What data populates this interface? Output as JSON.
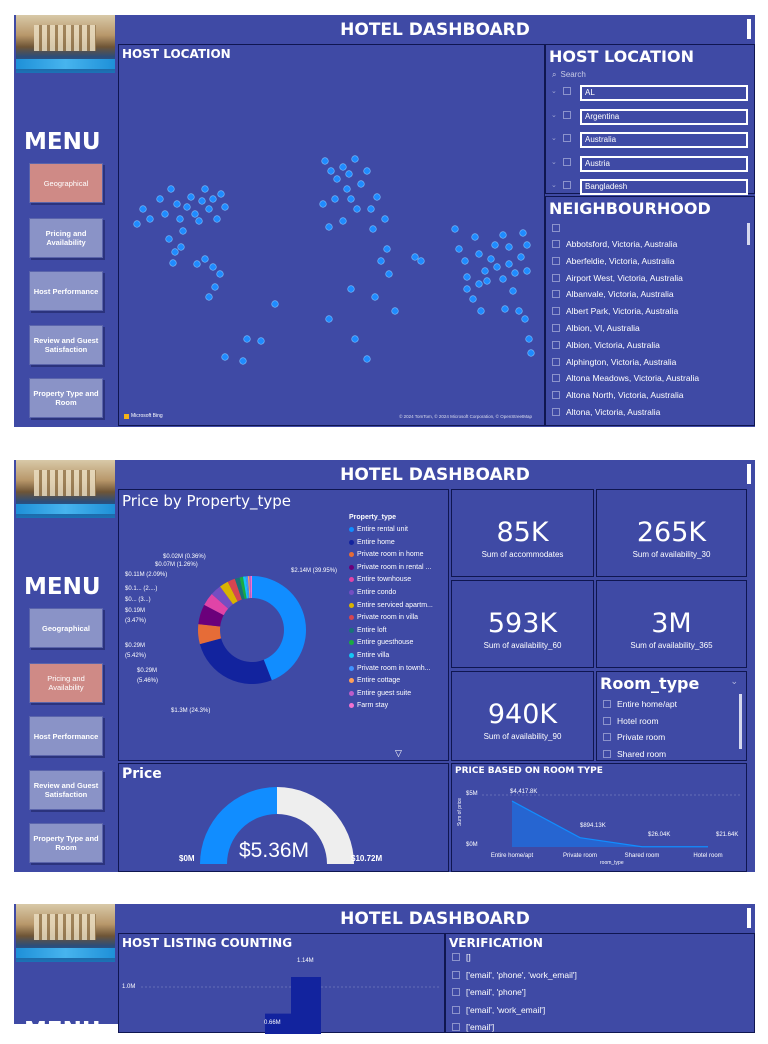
{
  "header": {
    "title": "HOTEL DASHBOARD"
  },
  "menu": {
    "title": "MENU",
    "items": [
      {
        "label": "Geographical"
      },
      {
        "label": "Pricing and Availability"
      },
      {
        "label": "Host Performance"
      },
      {
        "label": "Review and Guest Satisfaction"
      },
      {
        "label": "Property Type and Room"
      }
    ]
  },
  "page1": {
    "map": {
      "title": "HOST LOCATION",
      "brand": "Microsoft Bing",
      "credits": "© 2024 TomTom, © 2024 Microsoft Corporation, © OpenStreetMap"
    },
    "host_slicer": {
      "title": "HOST LOCATION",
      "search_placeholder": "Search",
      "items": [
        "AL",
        "Argentina",
        "Australia",
        "Austria",
        "Bangladesh"
      ]
    },
    "neigh_slicer": {
      "title": "NEIGHBOURHOOD",
      "items": [
        "Abbotsford, Victoria, Australia",
        "Aberfeldie, Victoria, Australia",
        "Airport West, Victoria, Australia",
        "Albanvale, Victoria, Australia",
        "Albert Park, Victoria, Australia",
        "Albion, VI, Australia",
        "Albion, Victoria, Australia",
        "Alphington, Victoria, Australia",
        "Altona Meadows, Victoria, Australia",
        "Altona North, Victoria, Australia",
        "Altona, Victoria, Australia"
      ]
    }
  },
  "page2": {
    "donut": {
      "title": "Price by Property_type",
      "legend_title": "Property_type",
      "legend": [
        "Entire rental unit",
        "Entire home",
        "Private room in home",
        "Private room in rental ...",
        "Entire townhouse",
        "Entire condo",
        "Entire serviced apartm...",
        "Private room in villa",
        "Entire loft",
        "Entire guesthouse",
        "Entire villa",
        "Private room in townh...",
        "Entire cottage",
        "Entire guest suite",
        "Farm stay"
      ],
      "labels": [
        "$0.02M (0.36%)",
        "$0.07M (1.26%)",
        "$0.11M (2.09%)",
        "$0.1... (2....)",
        "$0... (3...)",
        "$0.19M",
        "(3.47%)",
        "$0.29M",
        "(5.42%)",
        "$0.29M",
        "(5.46%)",
        "$1.3M (24.3%)",
        "$2.14M (39.95%)"
      ]
    },
    "kpis": [
      {
        "value": "85K",
        "label": "Sum of accommodates"
      },
      {
        "value": "265K",
        "label": "Sum of availability_30"
      },
      {
        "value": "593K",
        "label": "Sum of availability_60"
      },
      {
        "value": "3M",
        "label": "Sum of availability_365"
      },
      {
        "value": "940K",
        "label": "Sum of availability_90"
      }
    ],
    "room_slicer": {
      "title": "Room_type",
      "items": [
        "Entire home/apt",
        "Hotel room",
        "Private room",
        "Shared room"
      ]
    },
    "gauge": {
      "title": "Price",
      "value": "$5.36M",
      "min": "$0M",
      "max": "$10.72M"
    },
    "area": {
      "title": "PRICE BASED ON ROOM TYPE",
      "ylabel": "Sum of price",
      "xlabel": "room_type",
      "yticks": [
        "$5M",
        "$0M"
      ],
      "labels": [
        "$4,417.8K",
        "$894.13K",
        "$26.04K",
        "$21.64K"
      ]
    }
  },
  "page3": {
    "bar": {
      "title": "HOST LISTING COUNTING",
      "ytick": "1.0M",
      "labels": [
        "1.14M",
        "0.66M"
      ]
    },
    "verify": {
      "title": "VERIFICATION",
      "items": [
        "[]",
        "['email', 'phone', 'work_email']",
        "['email', 'phone']",
        "['email', 'work_email']",
        "['email']"
      ]
    }
  },
  "chart_data": [
    {
      "type": "pie",
      "title": "Price by Property_type",
      "categories": [
        "Entire rental unit",
        "Entire home",
        "Private room in home",
        "Private room in rental ...",
        "Entire townhouse",
        "Entire condo",
        "Entire serviced apartm...",
        "Private room in villa",
        "Entire loft",
        "Entire guesthouse",
        "Entire villa",
        "Private room in townh...",
        "Entire cottage",
        "Entire guest suite",
        "Farm stay"
      ],
      "values": [
        2.14,
        1.3,
        0.29,
        0.29,
        0.19,
        0.16,
        0.13,
        0.11,
        0.07,
        0.05,
        0.04,
        0.03,
        0.02,
        0.02,
        0.02
      ],
      "colors": [
        "#118dff",
        "#12239e",
        "#e66c37",
        "#6b007b",
        "#e044a7",
        "#744ec2",
        "#d9b300",
        "#d64550",
        "#197278",
        "#1aab40",
        "#15c6f4",
        "#4092ff",
        "#ffa058",
        "#be5dc9",
        "#f472d0"
      ]
    },
    {
      "type": "area",
      "title": "PRICE BASED ON ROOM TYPE",
      "categories": [
        "Entire home/apt",
        "Private room",
        "Shared room",
        "Hotel room"
      ],
      "values": [
        4417.8,
        894.13,
        26.04,
        21.64
      ],
      "ylabel": "Sum of price",
      "xlabel": "room_type"
    },
    {
      "type": "bar",
      "title": "HOST LISTING COUNTING",
      "values": [
        0.66,
        1.14
      ]
    }
  ],
  "colors": {
    "bg": "#3f4aa5",
    "accent": "#118dff",
    "active_menu": "#cf8a86",
    "menu_btn": "#8a93c7"
  }
}
